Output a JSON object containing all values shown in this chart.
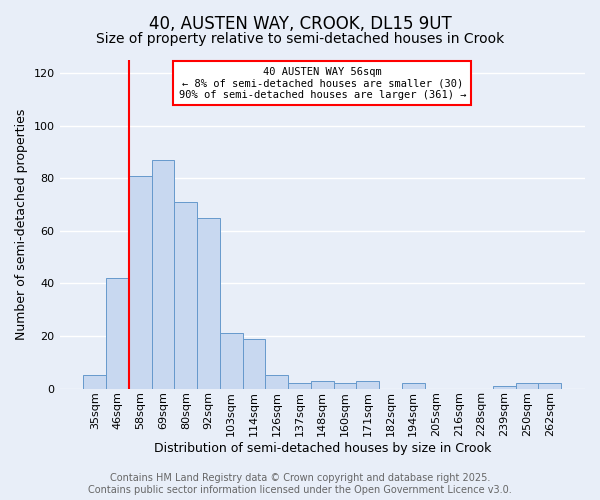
{
  "title": "40, AUSTEN WAY, CROOK, DL15 9UT",
  "subtitle": "Size of property relative to semi-detached houses in Crook",
  "xlabel": "Distribution of semi-detached houses by size in Crook",
  "ylabel": "Number of semi-detached properties",
  "categories": [
    "35sqm",
    "46sqm",
    "58sqm",
    "69sqm",
    "80sqm",
    "92sqm",
    "103sqm",
    "114sqm",
    "126sqm",
    "137sqm",
    "148sqm",
    "160sqm",
    "171sqm",
    "182sqm",
    "194sqm",
    "205sqm",
    "216sqm",
    "228sqm",
    "239sqm",
    "250sqm",
    "262sqm"
  ],
  "values": [
    5,
    42,
    81,
    87,
    71,
    65,
    21,
    19,
    5,
    2,
    3,
    2,
    3,
    0,
    2,
    0,
    0,
    0,
    1,
    2,
    2
  ],
  "bar_color": "#c8d8f0",
  "bar_edge_color": "#6699cc",
  "figure_bg_color": "#e8eef8",
  "axes_bg_color": "#e8eef8",
  "grid_color": "#ffffff",
  "ylim": [
    0,
    125
  ],
  "yticks": [
    0,
    20,
    40,
    60,
    80,
    100,
    120
  ],
  "property_line_x": 1.5,
  "property_line_label": "40 AUSTEN WAY 56sqm",
  "annotation_line1": "← 8% of semi-detached houses are smaller (30)",
  "annotation_line2": "90% of semi-detached houses are larger (361) →",
  "footer_line1": "Contains HM Land Registry data © Crown copyright and database right 2025.",
  "footer_line2": "Contains public sector information licensed under the Open Government Licence v3.0.",
  "title_fontsize": 12,
  "subtitle_fontsize": 10,
  "axis_label_fontsize": 9,
  "tick_fontsize": 8,
  "footer_fontsize": 7
}
